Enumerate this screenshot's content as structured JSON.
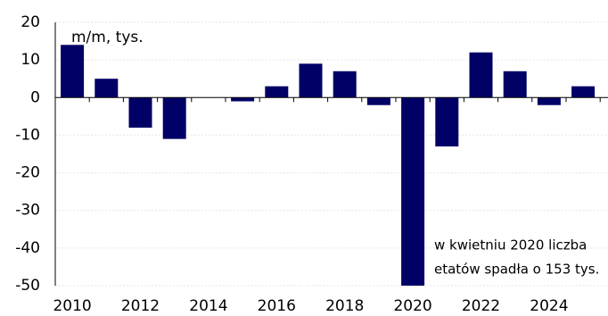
{
  "chart_data": {
    "type": "bar",
    "annotations": [
      "m/m, tys.",
      "w kwietniu 2020 liczba",
      "etatów spadła o 153 tys."
    ],
    "categories": [
      "2010",
      null,
      "2012",
      null,
      "2014",
      null,
      "2016",
      null,
      "2018",
      null,
      "2020",
      null,
      "2022",
      null,
      "2024",
      null
    ],
    "values": [
      14,
      5,
      -8,
      -11,
      0,
      -1,
      3,
      9,
      7,
      -2,
      -50,
      -13,
      12,
      7,
      -2,
      3
    ],
    "color": "#000066",
    "ylim": [
      -50,
      20
    ],
    "yticks": [
      -50,
      -40,
      -30,
      -20,
      -10,
      0,
      10,
      20
    ],
    "grid": true
  }
}
